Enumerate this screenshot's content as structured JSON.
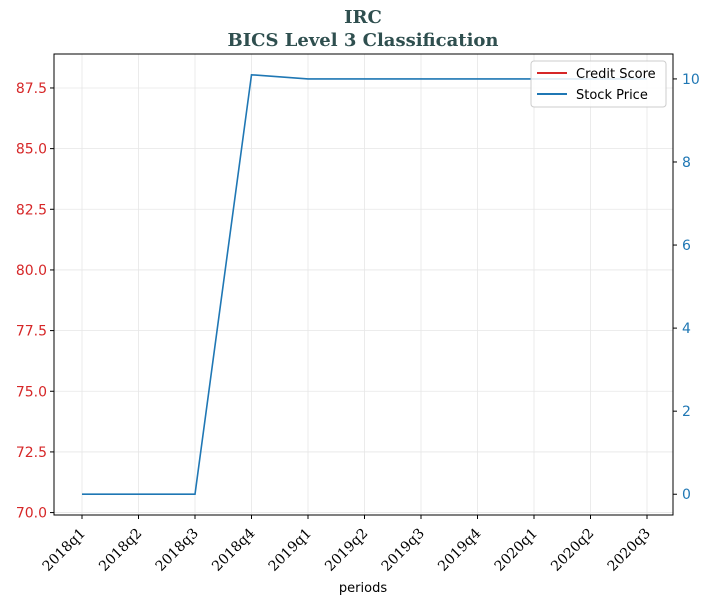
{
  "chart_data": {
    "type": "line",
    "title": "IRC",
    "subtitle": "BICS Level 3 Classification",
    "xlabel": "periods",
    "categories": [
      "2018q1",
      "2018q2",
      "2018q3",
      "2018q4",
      "2019q1",
      "2019q2",
      "2019q3",
      "2019q4",
      "2020q1",
      "2020q2",
      "2020q3"
    ],
    "left_axis": {
      "ylim": [
        69.9,
        88.9
      ],
      "ticks": [
        "70.0",
        "72.5",
        "75.0",
        "77.5",
        "80.0",
        "82.5",
        "85.0",
        "87.5"
      ],
      "tick_values": [
        70.0,
        72.5,
        75.0,
        77.5,
        80.0,
        82.5,
        85.0,
        87.5
      ],
      "color": "#d62728"
    },
    "right_axis": {
      "ylim": [
        -0.5,
        10.6
      ],
      "ticks": [
        "0",
        "2",
        "4",
        "6",
        "8",
        "10"
      ],
      "tick_values": [
        0,
        2,
        4,
        6,
        8,
        10
      ],
      "color": "#1f77b4"
    },
    "series": [
      {
        "name": "Credit Score",
        "axis": "left",
        "color": "#d62728",
        "values": [
          null,
          null,
          null,
          null,
          null,
          null,
          null,
          null,
          null,
          null,
          null
        ]
      },
      {
        "name": "Stock Price",
        "axis": "right",
        "color": "#1f77b4",
        "values": [
          0,
          0,
          0,
          10.1,
          10.0,
          10.0,
          10.0,
          10.0,
          10.0,
          10.0,
          10.0
        ]
      }
    ],
    "grid": true,
    "legend_position": "top-right"
  }
}
